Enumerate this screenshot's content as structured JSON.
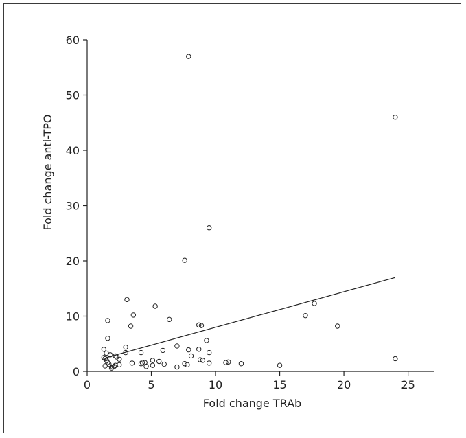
{
  "chart_data": {
    "type": "scatter",
    "title": "",
    "xlabel": "Fold change TRAb",
    "ylabel": "Fold change anti-TPO",
    "xlim": [
      0,
      27
    ],
    "ylim": [
      0,
      60
    ],
    "x_ticks": [
      0,
      5,
      10,
      15,
      20,
      25
    ],
    "y_ticks": [
      0,
      10,
      20,
      30,
      40,
      50,
      60
    ],
    "grid": false,
    "legend": "none",
    "series": [
      {
        "marker": "open-circle",
        "points": [
          [
            7.9,
            57.0
          ],
          [
            24.0,
            46.0
          ],
          [
            9.5,
            26.0
          ],
          [
            7.6,
            20.1
          ],
          [
            3.1,
            13.0
          ],
          [
            17.7,
            12.3
          ],
          [
            5.3,
            11.8
          ],
          [
            3.6,
            10.2
          ],
          [
            17.0,
            10.1
          ],
          [
            6.4,
            9.4
          ],
          [
            1.6,
            9.2
          ],
          [
            8.7,
            8.4
          ],
          [
            8.9,
            8.3
          ],
          [
            3.4,
            8.2
          ],
          [
            19.5,
            8.2
          ],
          [
            1.6,
            6.0
          ],
          [
            9.3,
            5.6
          ],
          [
            7.0,
            4.6
          ],
          [
            3.0,
            4.4
          ],
          [
            1.3,
            4.0
          ],
          [
            8.7,
            4.0
          ],
          [
            7.9,
            3.9
          ],
          [
            5.9,
            3.8
          ],
          [
            9.5,
            3.4
          ],
          [
            3.0,
            3.4
          ],
          [
            4.2,
            3.4
          ],
          [
            1.5,
            3.3
          ],
          [
            1.8,
            3.0
          ],
          [
            2.2,
            2.8
          ],
          [
            8.1,
            2.8
          ],
          [
            2.3,
            2.6
          ],
          [
            1.3,
            2.5
          ],
          [
            1.4,
            2.3
          ],
          [
            24.0,
            2.3
          ],
          [
            2.5,
            2.2
          ],
          [
            8.8,
            2.1
          ],
          [
            9.0,
            2.0
          ],
          [
            1.5,
            2.0
          ],
          [
            5.1,
            2.0
          ],
          [
            5.6,
            1.8
          ],
          [
            10.8,
            1.6
          ],
          [
            4.3,
            1.6
          ],
          [
            11.0,
            1.7
          ],
          [
            1.6,
            1.6
          ],
          [
            3.5,
            1.5
          ],
          [
            4.5,
            1.6
          ],
          [
            6.0,
            1.3
          ],
          [
            7.6,
            1.4
          ],
          [
            12.0,
            1.4
          ],
          [
            9.5,
            1.5
          ],
          [
            4.2,
            1.4
          ],
          [
            1.7,
            1.3
          ],
          [
            7.8,
            1.2
          ],
          [
            2.5,
            1.2
          ],
          [
            1.4,
            1.0
          ],
          [
            2.2,
            1.1
          ],
          [
            5.1,
            1.1
          ],
          [
            15.0,
            1.1
          ],
          [
            4.6,
            0.9
          ],
          [
            7.0,
            0.8
          ],
          [
            2.0,
            0.8
          ],
          [
            1.9,
            0.6
          ],
          [
            2.1,
            0.9
          ]
        ]
      }
    ],
    "trendline": {
      "x": [
        1.5,
        24.0
      ],
      "y": [
        2.5,
        17.0
      ]
    },
    "colors": {
      "marker_stroke": "#222222",
      "line": "#222222",
      "axis": "#222222",
      "frame": "#3a3a3a"
    }
  }
}
